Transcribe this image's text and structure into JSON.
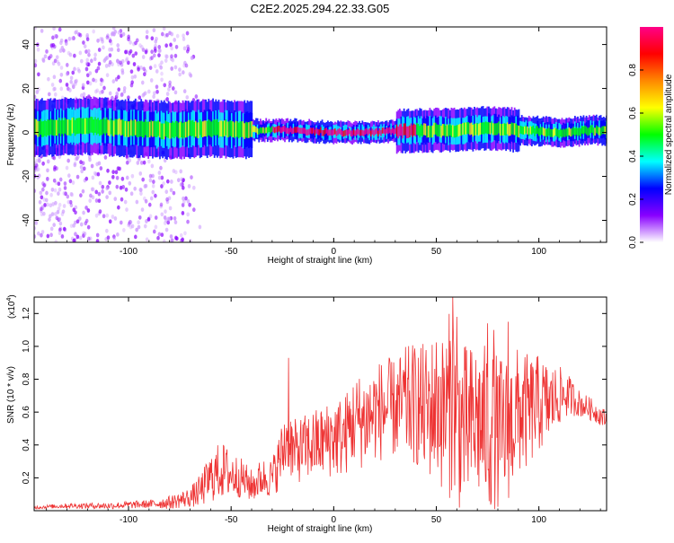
{
  "title": "C2E2.2025.294.22.33.G05",
  "colors": {
    "series": "#ee3333",
    "axis": "#000000"
  },
  "chart_data": [
    {
      "type": "heatmap",
      "xlabel": "Height of straight line (km)",
      "ylabel": "Frequency (Hz)",
      "xlim": [
        -146,
        133
      ],
      "ylim": [
        -50,
        48
      ],
      "xticks": [
        -100,
        -50,
        0,
        50,
        100
      ],
      "xtick_labels": [
        "-100",
        "-50",
        "0",
        "50",
        "100"
      ],
      "yticks": [
        -40,
        -20,
        0,
        20,
        40
      ],
      "ytick_labels": [
        "-40",
        "-20",
        "0",
        "20",
        "40"
      ],
      "colorbar": {
        "label": "Normalized spectral amplitude",
        "range": [
          0,
          1
        ],
        "ticks": [
          0.0,
          0.2,
          0.4,
          0.6,
          0.8
        ],
        "tick_labels": [
          "0.0",
          "0.2",
          "0.4",
          "0.6",
          "0.8"
        ],
        "colormap": [
          "#ffffff",
          "#8800ff",
          "#0000ff",
          "#00ffff",
          "#00ff00",
          "#ffff00",
          "#ff8800",
          "#ff0000",
          "#ff0088"
        ]
      },
      "centerline": {
        "x": [
          -146,
          -120,
          -100,
          -80,
          -60,
          -40,
          -20,
          0,
          20,
          40,
          60,
          75,
          90,
          110,
          125,
          133
        ],
        "y": [
          2,
          3,
          2,
          1,
          2,
          1,
          1,
          0,
          0,
          1,
          1,
          2,
          1,
          0,
          1,
          1
        ]
      }
    },
    {
      "type": "line",
      "xlabel": "Height of straight line (km)",
      "ylabel": "SNR (10 * v/v)",
      "y_multiplier_label": "(x10",
      "y_multiplier_exp": "4",
      "y_multiplier_close": ")",
      "xlim": [
        -146,
        133
      ],
      "ylim": [
        0,
        1.3
      ],
      "xticks": [
        -100,
        -50,
        0,
        50,
        100
      ],
      "xtick_labels": [
        "-100",
        "-50",
        "0",
        "50",
        "100"
      ],
      "yticks": [
        0.2,
        0.4,
        0.6,
        0.8,
        1.0,
        1.2
      ],
      "ytick_labels": [
        "0.2",
        "0.4",
        "0.6",
        "0.8",
        "1.0",
        "1.2"
      ],
      "series": [
        {
          "x": [
            -146,
            -130,
            -110,
            -90,
            -80,
            -70,
            -65,
            -60,
            -55,
            -50,
            -45,
            -40,
            -35,
            -30,
            -25,
            -22,
            -20,
            -15,
            -10,
            -5,
            0,
            5,
            10,
            15,
            20,
            25,
            30,
            35,
            40,
            45,
            50,
            55,
            58,
            60,
            65,
            70,
            75,
            80,
            85,
            90,
            95,
            100,
            105,
            110,
            115,
            120,
            125,
            130,
            133
          ],
          "y": [
            0.02,
            0.03,
            0.03,
            0.04,
            0.05,
            0.08,
            0.12,
            0.2,
            0.25,
            0.22,
            0.2,
            0.15,
            0.2,
            0.2,
            0.35,
            0.5,
            0.35,
            0.38,
            0.4,
            0.42,
            0.45,
            0.45,
            0.55,
            0.55,
            0.6,
            0.62,
            0.62,
            0.65,
            0.65,
            0.6,
            0.65,
            0.6,
            0.7,
            0.55,
            0.5,
            0.55,
            0.5,
            0.45,
            0.5,
            0.6,
            0.6,
            0.65,
            0.65,
            0.7,
            0.7,
            0.65,
            0.62,
            0.58,
            0.55
          ],
          "spread": [
            0.01,
            0.015,
            0.02,
            0.025,
            0.04,
            0.06,
            0.1,
            0.15,
            0.18,
            0.15,
            0.12,
            0.1,
            0.12,
            0.12,
            0.2,
            0.25,
            0.2,
            0.2,
            0.22,
            0.22,
            0.25,
            0.25,
            0.28,
            0.3,
            0.3,
            0.32,
            0.3,
            0.35,
            0.38,
            0.42,
            0.45,
            0.55,
            0.6,
            0.55,
            0.5,
            0.5,
            0.5,
            0.5,
            0.45,
            0.4,
            0.35,
            0.3,
            0.25,
            0.18,
            0.12,
            0.08,
            0.07,
            0.06,
            0.06
          ],
          "spikes": [
            [
              -22,
              0.93
            ],
            [
              58,
              1.3
            ],
            [
              60,
              1.18
            ],
            [
              75,
              1.14
            ],
            [
              85,
              1.15
            ],
            [
              78,
              1.1
            ],
            [
              53,
              1.02
            ]
          ]
        }
      ]
    }
  ]
}
